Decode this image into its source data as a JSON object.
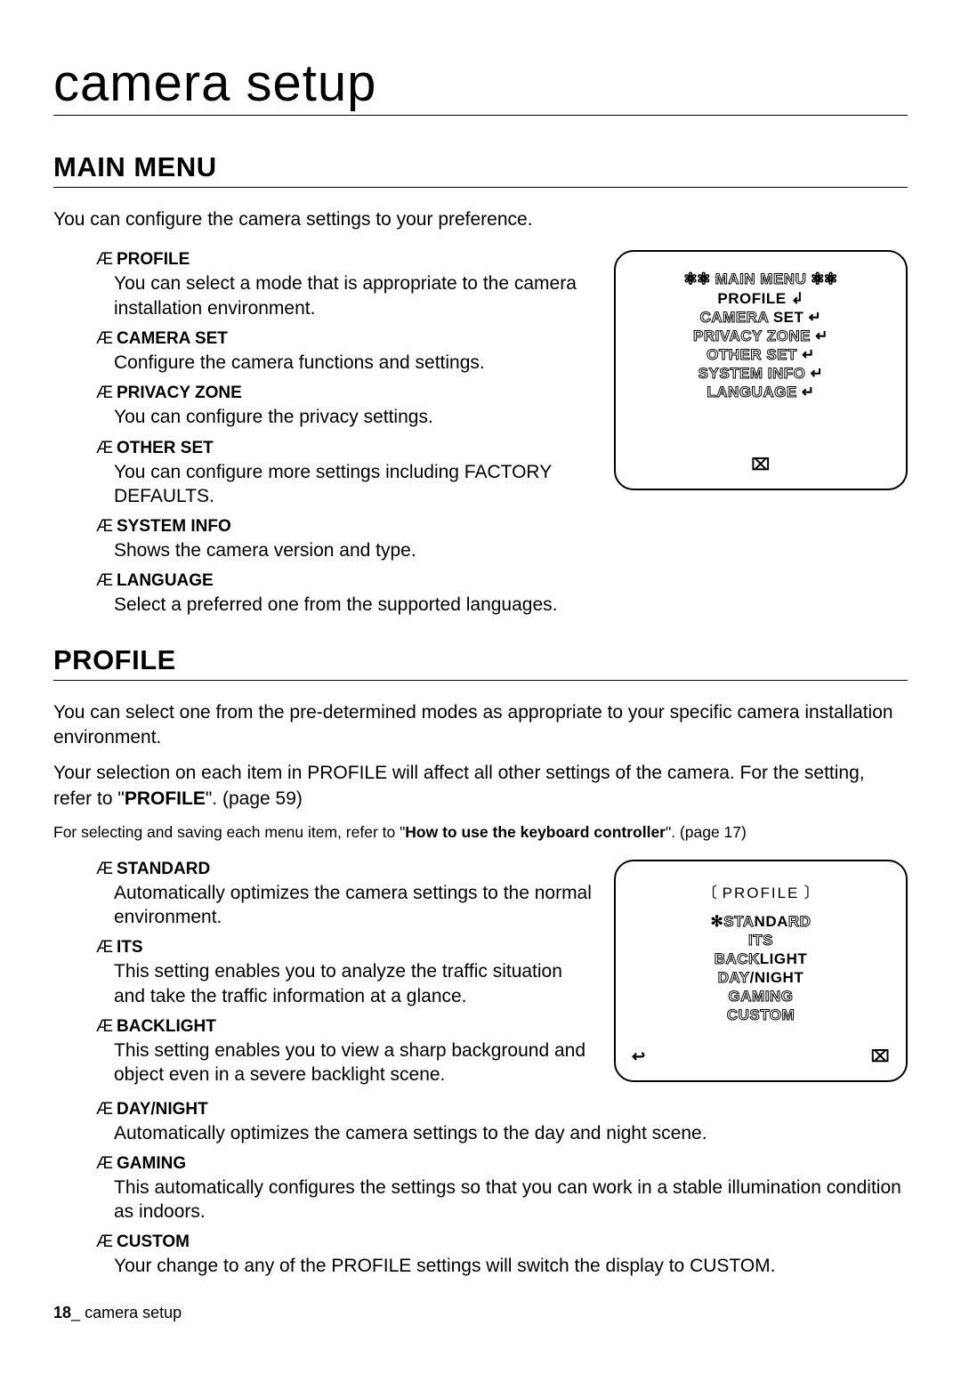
{
  "page": {
    "title": "camera setup",
    "footer_page_number": "18",
    "footer_underscore": "_",
    "footer_label": "camera setup"
  },
  "main_menu": {
    "heading": "MAIN MENU",
    "intro": "You can configure the camera settings to your preference.",
    "items": [
      {
        "marker": "Æ",
        "term": "PROFILE",
        "desc": "You can select a mode that is appropriate to the camera installation environment."
      },
      {
        "marker": "Æ",
        "term": "CAMERA SET",
        "desc": "Configure the camera functions and settings."
      },
      {
        "marker": "Æ",
        "term": "PRIVACY ZONE",
        "desc": "You can configure the privacy settings."
      },
      {
        "marker": "Æ",
        "term": "OTHER SET",
        "desc": "You can configure more settings including FACTORY DEFAULTS."
      },
      {
        "marker": "Æ",
        "term": "SYSTEM INFO",
        "desc": "Shows the camera version and type."
      },
      {
        "marker": "Æ",
        "term": "LANGUAGE",
        "desc": "Select a preferred one from the supported languages."
      }
    ],
    "osd": {
      "title_left": "✻✻",
      "title_text": "MAIN MENU",
      "title_right": "✻✻",
      "lines": [
        {
          "text": "PROFILE",
          "solid": true,
          "suffix_icon": "↲"
        },
        {
          "p1_outline": "CAMERA ",
          "p2_solid": "SET",
          "suffix_icon": "↵"
        },
        {
          "p1_outline": "PRIVACY ZONE",
          "suffix_icon": "↵"
        },
        {
          "p1_outline": "OTHER SET",
          "suffix_icon": "↵"
        },
        {
          "p1_outline": "SYSTEM INFO",
          "suffix_icon": "↵"
        },
        {
          "p1_outline": "LANGUAGE",
          "suffix_icon": "↵"
        }
      ],
      "footer_center_icon": "⌧"
    }
  },
  "profile": {
    "heading": "PROFILE",
    "para1": "You can select one from the pre-determined modes as appropriate to your specific camera installation environment.",
    "para2_pre": "Your selection on each item in PROFILE will affect all other settings of the camera. For the setting, refer to \"",
    "para2_bold": "PROFILE",
    "para2_post": "\". (page 59)",
    "small_pre": "For selecting and saving each menu item, refer to \"",
    "small_bold": "How to use the keyboard controller",
    "small_post": "\". (page 17)",
    "items": [
      {
        "marker": "Æ",
        "term": "STANDARD",
        "desc": "Automatically optimizes the camera settings to the normal environment."
      },
      {
        "marker": "Æ",
        "term": "ITS",
        "desc": "This setting enables you to analyze the traffic situation and take the traffic information at a glance."
      },
      {
        "marker": "Æ",
        "term": "BACKLIGHT",
        "desc": "This setting enables you to view a sharp background and object even in a severe backlight scene."
      },
      {
        "marker": "Æ",
        "term": "DAY/NIGHT",
        "desc": "Automatically optimizes the camera settings to the day and night scene."
      },
      {
        "marker": "Æ",
        "term": "GAMING",
        "desc": "This automatically configures the settings so that you can work in a stable illumination condition as indoors."
      },
      {
        "marker": "Æ",
        "term": "CUSTOM",
        "desc": "Your change to any of the PROFILE settings will switch the display to CUSTOM."
      }
    ],
    "osd": {
      "title_left": "〔",
      "title_text": "PROFILE",
      "title_right": "〕",
      "lines": [
        {
          "prefix_icon": "✻",
          "p1_outline": "STA",
          "p2_solid": "NDA",
          "p3_outline": "RD"
        },
        {
          "p1_outline": "ITS"
        },
        {
          "p1_outline": "BACK",
          "p2_solid": "LIGHT"
        },
        {
          "p1_outline": "DAY",
          "p2_solid": "/NIGHT"
        },
        {
          "p1_outline": "GAMING"
        },
        {
          "p1_outline": "CUSTOM"
        }
      ],
      "footer_left_icon": "↩",
      "footer_right_icon": "⌧"
    }
  }
}
